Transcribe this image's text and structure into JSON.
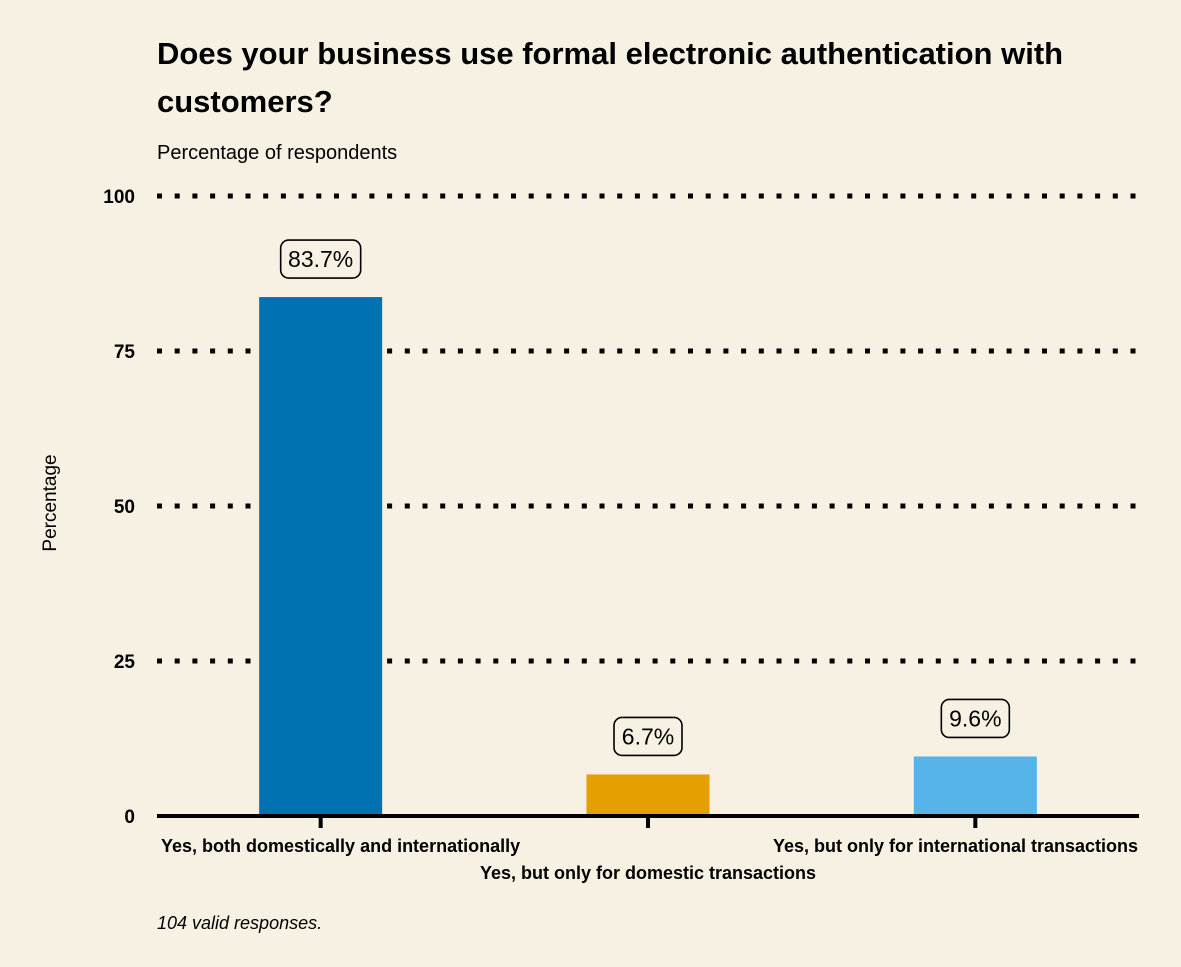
{
  "chart_data": {
    "type": "bar",
    "title": "Does your business use formal electronic authentication with customers?",
    "subtitle": "Percentage of respondents",
    "ylabel": "Percentage",
    "xlabel": "",
    "caption": "104 valid responses.",
    "categories": [
      "Yes, both domestically and internationally",
      "Yes, but only for domestic transactions",
      "Yes, but only for international transactions"
    ],
    "values": [
      83.7,
      6.7,
      9.6
    ],
    "value_labels": [
      "83.7%",
      "6.7%",
      "9.6%"
    ],
    "colors": [
      "#0072b2",
      "#e69f00",
      "#56b4e9"
    ],
    "yticks": [
      0,
      25,
      50,
      75,
      100
    ],
    "ylim": [
      0,
      100
    ],
    "grid": true,
    "legend": "none"
  }
}
